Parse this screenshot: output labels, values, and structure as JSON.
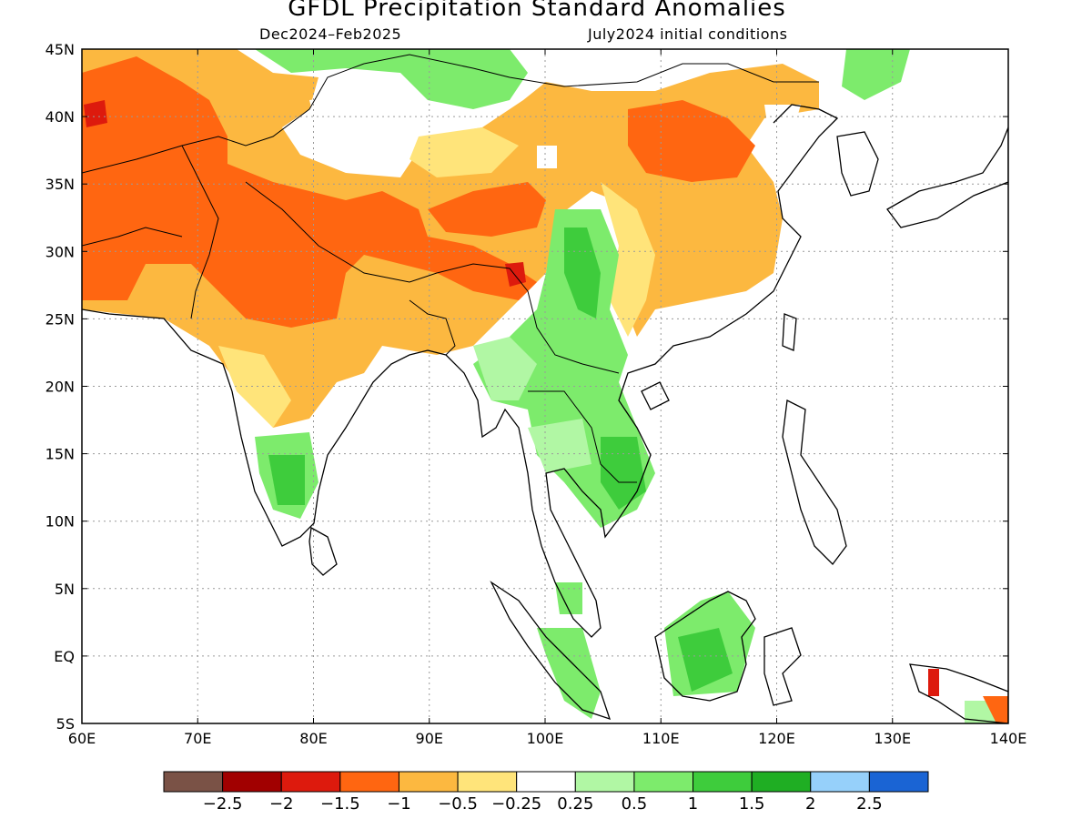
{
  "title": "GFDL Precipitation Standard Anomalies",
  "period": "Dec2024–Feb2025",
  "init": "July2024 initial conditions",
  "axes": {
    "lon_labels": [
      "60E",
      "70E",
      "80E",
      "90E",
      "100E",
      "110E",
      "120E",
      "130E",
      "140E"
    ],
    "lat_labels": [
      "45N",
      "40N",
      "35N",
      "30N",
      "25N",
      "20N",
      "15N",
      "10N",
      "5N",
      "EQ",
      "5S"
    ],
    "lon_range": [
      60,
      140
    ],
    "lat_range": [
      -5,
      45
    ]
  },
  "colorbar": {
    "colors": [
      "#7a5246",
      "#a10000",
      "#dd1a0d",
      "#ff6611",
      "#fcb840",
      "#ffe47a",
      "#ffffff",
      "#b1f7a4",
      "#7deb6c",
      "#3ecc3c",
      "#1fae23",
      "#96d0fa",
      "#1a64d4"
    ],
    "labels": [
      "−2.5",
      "−2",
      "−1.5",
      "−1",
      "−0.5",
      "−0.25",
      "0.25",
      "0.5",
      "1",
      "1.5",
      "2",
      "2.5"
    ]
  }
}
